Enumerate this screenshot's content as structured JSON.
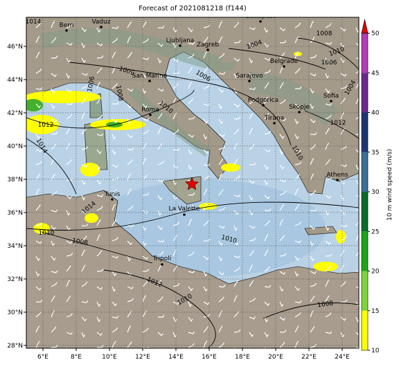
{
  "title": "Forecast of 2021081218 (f144)",
  "lonlim": [
    5,
    25
  ],
  "latlim": [
    27.83,
    47.75
  ],
  "lon_ticks": [
    {
      "value": 6,
      "label": "6°E"
    },
    {
      "value": 8,
      "label": "8°E"
    },
    {
      "value": 10,
      "label": "10°E"
    },
    {
      "value": 12,
      "label": "12°E"
    },
    {
      "value": 14,
      "label": "14°E"
    },
    {
      "value": 16,
      "label": "16°E"
    },
    {
      "value": 18,
      "label": "18°E"
    },
    {
      "value": 20,
      "label": "20°E"
    },
    {
      "value": 22,
      "label": "22°E"
    },
    {
      "value": 24,
      "label": "24°E"
    }
  ],
  "lat_ticks": [
    {
      "value": 28,
      "label": "28°N"
    },
    {
      "value": 30,
      "label": "30°N"
    },
    {
      "value": 32,
      "label": "32°N"
    },
    {
      "value": 34,
      "label": "34°N"
    },
    {
      "value": 36,
      "label": "36°N"
    },
    {
      "value": 38,
      "label": "38°N"
    },
    {
      "value": 40,
      "label": "40°N"
    },
    {
      "value": 42,
      "label": "42°N"
    },
    {
      "value": 44,
      "label": "44°N"
    },
    {
      "value": 46,
      "label": "46°N"
    }
  ],
  "cities": [
    "Bern",
    "Vaduz",
    "Budapest",
    "Ljubljana",
    "Zagreb",
    "Belgrade",
    "San Marino",
    "Sarajevo",
    "Roma",
    "Podgorica",
    "Sofia",
    "Skopje",
    "Tirana",
    "Athens",
    "Tunis",
    "La Valette",
    "Tripoli"
  ],
  "isobar_labels": [
    "1014",
    "1012",
    "1014",
    "1010",
    "1008",
    "1012",
    "1010",
    "1008",
    "1008",
    "1010",
    "1006",
    "1004",
    "1006",
    "1006",
    "1006",
    "1008",
    "1010",
    "1014",
    "1010",
    "1012",
    "1010",
    "1004"
  ],
  "colorbar": {
    "label": "10 m wind speed (m/s)",
    "lim": [
      10,
      50
    ],
    "ticks": [
      10,
      15,
      20,
      25,
      30,
      35,
      40,
      45,
      50
    ],
    "colors": [
      "#ffff00",
      "#7fd43a",
      "#1aa51a",
      "#0b6b2a",
      "#3b6f96",
      "#1c3570",
      "#6a2a8e",
      "#b23cb8"
    ],
    "over_color": "#e00000"
  }
}
